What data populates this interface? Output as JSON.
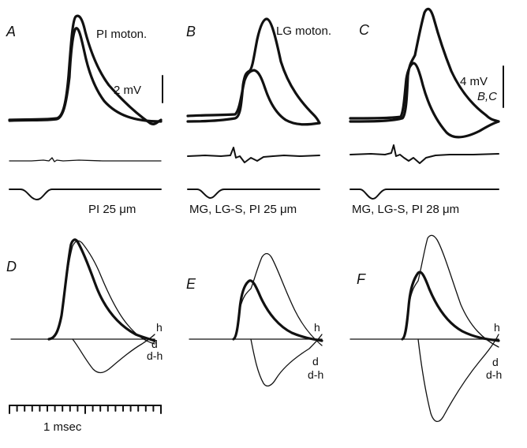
{
  "figure": {
    "panels": {
      "A": "A",
      "B": "B",
      "C": "C",
      "D": "D",
      "E": "E",
      "F": "F"
    },
    "labels": {
      "a_neuron": "PI  moton.",
      "bc_neuron": "LG moton.",
      "scale_a": "2 mV",
      "scale_bc": "4 mV",
      "scale_bc_panels": "B,C",
      "stim_a": "PI 25 μm",
      "stim_b": "MG, LG-S, PI 25 μm",
      "stim_c": "MG, LG-S, PI  28 μm",
      "time_scale": "1 msec"
    },
    "curve_labels": {
      "D": [
        "h",
        "d",
        "d-h"
      ],
      "E": [
        "h",
        "d",
        "d-h"
      ],
      "F": [
        "h",
        "d",
        "d-h"
      ]
    }
  }
}
